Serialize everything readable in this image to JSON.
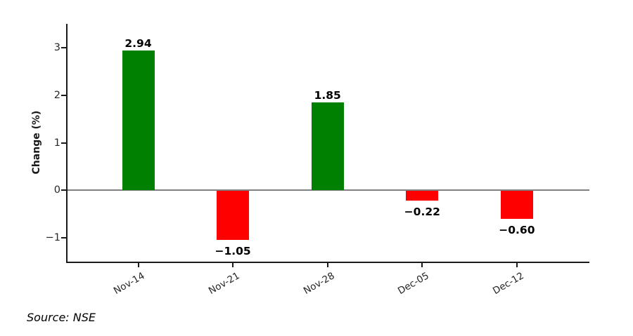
{
  "chart_data": {
    "type": "bar",
    "categories": [
      "Nov-14",
      "Nov-21",
      "Nov-28",
      "Dec-05",
      "Dec-12"
    ],
    "values": [
      2.94,
      -1.05,
      1.85,
      -0.22,
      -0.6
    ],
    "value_labels": [
      "2.94",
      "−1.05",
      "1.85",
      "−0.22",
      "−0.60"
    ],
    "title": "",
    "xlabel": "",
    "ylabel": "Change (%)",
    "ylim": [
      -1.5,
      3.5
    ],
    "yticks": [
      3,
      2,
      1,
      0,
      -1
    ],
    "ytick_labels": [
      "3",
      "2",
      "1",
      "0",
      "−1"
    ],
    "bar_colors": {
      "positive": "#008000",
      "negative": "#ff0000"
    },
    "axis_color": "#1a1a1a",
    "zero_line_color": "#808080",
    "grid": false,
    "legend": null
  },
  "source_note": "Source: NSE"
}
